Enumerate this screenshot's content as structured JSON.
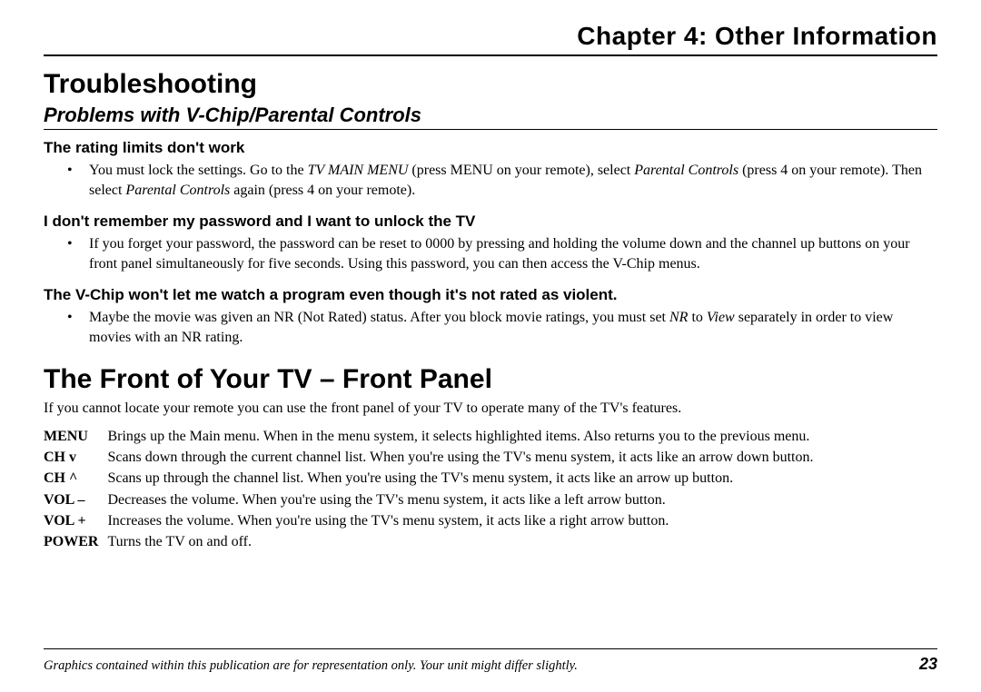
{
  "chapter_title": "Chapter 4: Other Information",
  "troubleshooting": {
    "heading": "Troubleshooting",
    "subheading": "Problems with V-Chip/Parental Controls",
    "items": [
      {
        "title": "The rating limits don't work",
        "pre": "You must lock the settings. Go to the ",
        "i1": "TV MAIN MENU",
        "mid1": " (press MENU on your remote), select ",
        "i2": "Parental Controls",
        "mid2": " (press 4 on your remote). Then select ",
        "i3": "Parental Controls",
        "post": " again (press 4 on your remote)."
      },
      {
        "title": "I don't remember my password and I want to unlock the TV",
        "text": "If you forget your password, the password can be reset to 0000 by pressing and holding the volume down and the channel up buttons on your front panel simultaneously for five seconds. Using this password, you can then access the V-Chip menus."
      },
      {
        "title": "The V-Chip won't let me watch a program even though it's not rated as violent.",
        "pre": "Maybe the movie was given an NR (Not Rated) status. After you block movie ratings, you must set ",
        "i1": "NR",
        "mid1": " to ",
        "i2": "View",
        "post": " separately in order to view movies with an NR rating."
      }
    ]
  },
  "front": {
    "heading": "The Front of Your TV – Front Panel",
    "intro": "If you cannot locate your remote you can use the front panel of your TV to operate many of the TV's features.",
    "defs": [
      {
        "label": "MENU",
        "desc": "Brings up the Main menu. When in the menu system, it selects highlighted items. Also returns you to the previous menu."
      },
      {
        "label": "CH v",
        "desc": "Scans down through the current channel list. When you're using the TV's menu system, it acts like an arrow down button."
      },
      {
        "label": "CH ^",
        "desc": "Scans up through the channel list. When you're using the TV's menu system, it acts like an arrow up button."
      },
      {
        "label": "VOL –",
        "desc": "Decreases the volume. When you're using the TV's menu system, it acts like a left arrow button."
      },
      {
        "label": "VOL +",
        "desc": "Increases the volume. When you're using the TV's menu system, it acts like a right arrow button."
      },
      {
        "label": "POWER",
        "desc": "Turns the TV on and off."
      }
    ]
  },
  "footer": {
    "note": "Graphics contained within this publication are for representation only. Your unit might differ slightly.",
    "page": "23"
  }
}
